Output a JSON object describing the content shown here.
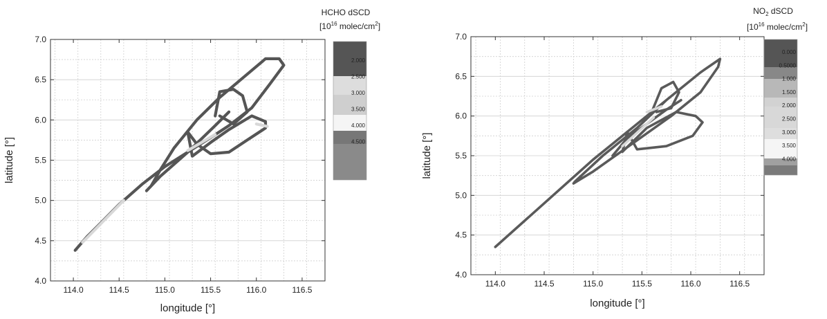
{
  "chart_data": [
    {
      "type": "line",
      "xlabel": "longitude [°]",
      "ylabel": "latitude [°]",
      "xlim": [
        113.75,
        116.75
      ],
      "ylim": [
        4.0,
        7.0
      ],
      "x_ticks": [
        "114.0",
        "114.5",
        "115.0",
        "115.5",
        "116.0",
        "116.5"
      ],
      "y_ticks": [
        "4.0",
        "4.5",
        "5.0",
        "5.5",
        "6.0",
        "6.5",
        "7.0"
      ],
      "grid": true,
      "colorbar": {
        "title": "HCHO dSCD",
        "units_prefix": "[10",
        "units_exp": "16",
        "units_mid": " molec/cm",
        "units_exp2": "2",
        "units_suffix": "]",
        "labels": [
          "2.000",
          "2.500",
          "3.000",
          "3.500",
          "4.000",
          "4.500"
        ],
        "colors": [
          "#555555",
          "#dddddd",
          "#cfcfcf",
          "#f5f5f5",
          "#777777",
          "#8a8a8a"
        ]
      },
      "series": [
        {
          "x": [
            114.02,
            114.15,
            114.3,
            114.5,
            114.75,
            115.0,
            115.25,
            115.5,
            115.7,
            115.95,
            116.15,
            116.3,
            116.25,
            116.1,
            115.85,
            115.6,
            115.35,
            115.1,
            114.95,
            114.85,
            114.8,
            114.95,
            115.25,
            115.55,
            115.7
          ],
          "y": [
            4.38,
            4.55,
            4.72,
            4.95,
            5.2,
            5.42,
            5.6,
            5.78,
            5.93,
            6.15,
            6.45,
            6.68,
            6.76,
            6.76,
            6.52,
            6.28,
            6.0,
            5.65,
            5.38,
            5.18,
            5.12,
            5.3,
            5.6,
            5.93,
            6.1
          ]
        },
        {
          "x": [
            115.3,
            115.5,
            115.7,
            115.95,
            116.1,
            116.1,
            115.9,
            115.7,
            115.5,
            115.35,
            115.25,
            115.3
          ],
          "y": [
            5.55,
            5.72,
            5.88,
            6.05,
            5.98,
            5.9,
            5.75,
            5.6,
            5.58,
            5.7,
            5.85,
            5.55
          ]
        },
        {
          "x": [
            115.55,
            115.6,
            115.75,
            115.85,
            115.9,
            115.75,
            115.6
          ],
          "y": [
            6.05,
            6.35,
            6.38,
            6.3,
            6.1,
            5.95,
            6.05
          ]
        }
      ]
    },
    {
      "type": "line",
      "xlabel": "longitude [°]",
      "ylabel": "latitude [°]",
      "xlim": [
        113.75,
        116.75
      ],
      "ylim": [
        4.0,
        7.0
      ],
      "x_ticks": [
        "114.0",
        "114.5",
        "115.0",
        "115.5",
        "116.0",
        "116.5"
      ],
      "y_ticks": [
        "4.0",
        "4.5",
        "5.0",
        "5.5",
        "6.0",
        "6.5",
        "7.0"
      ],
      "grid": true,
      "colorbar": {
        "title_prefix": "NO",
        "title_sub": "2",
        "title_suffix": " dSCD",
        "units_prefix": "[10",
        "units_exp": "16",
        "units_mid": " molec/cm",
        "units_exp2": "2",
        "units_suffix": "]",
        "labels": [
          "0.000",
          "0.5000",
          "1.000",
          "1.500",
          "2.000",
          "2.500",
          "3.000",
          "3.500",
          "4.000"
        ],
        "colors": [
          "#555555",
          "#888888",
          "#b8b8b8",
          "#d2d2d2",
          "#d8d8d8",
          "#dedede",
          "#f5f5f5",
          "#a0a0a0",
          "#7a7a7a"
        ]
      },
      "series": [
        {
          "x": [
            114.0,
            114.5,
            115.0,
            115.4,
            115.8,
            116.1,
            116.3,
            116.28,
            116.1,
            115.8,
            115.4,
            115.0,
            114.8,
            114.82,
            115.1,
            115.45,
            115.75
          ],
          "y": [
            4.35,
            4.9,
            5.45,
            5.85,
            6.25,
            6.55,
            6.72,
            6.62,
            6.3,
            6.0,
            5.65,
            5.3,
            5.15,
            5.18,
            5.5,
            5.85,
            6.2
          ]
        },
        {
          "x": [
            115.3,
            115.55,
            115.85,
            116.05,
            116.12,
            116.02,
            115.75,
            115.45,
            115.35,
            115.3
          ],
          "y": [
            5.55,
            5.85,
            6.05,
            6.0,
            5.92,
            5.75,
            5.62,
            5.58,
            5.8,
            5.55
          ]
        },
        {
          "x": [
            115.6,
            115.7,
            115.82,
            115.88,
            115.8,
            115.65
          ],
          "y": [
            6.05,
            6.35,
            6.43,
            6.3,
            6.1,
            6.05
          ]
        },
        {
          "x": [
            115.2,
            115.35,
            115.55,
            115.75,
            115.9
          ],
          "y": [
            5.5,
            5.72,
            5.9,
            6.08,
            6.2
          ]
        }
      ]
    }
  ]
}
